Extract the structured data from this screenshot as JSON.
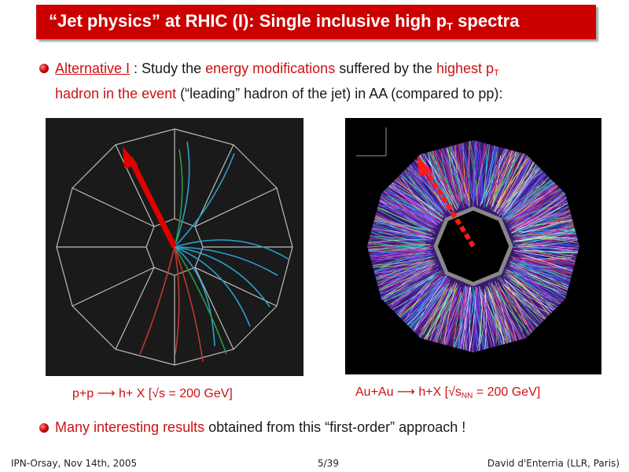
{
  "title": {
    "main": "“Jet physics” at RHIC (I): Single inclusive high p",
    "sub": "T",
    "tail": " spectra"
  },
  "bullet1": {
    "alt_label": "Alternative I",
    "t1": " : Study the ",
    "energy_mod": "energy modifications",
    "t2": " suffered by the ",
    "highest_p": "highest p",
    "highest_sub": "T",
    "line2_red": "hadron in the event",
    "line2_rest": " (“leading” hadron of the jet) in AA (compared to pp):"
  },
  "caption_pp": "p+p ⟶ h+ X [√s = 200 GeV]",
  "caption_auau": {
    "main": "Au+Au ⟶ h+X [√s",
    "sub": "NN",
    "tail": " = 200 GeV]"
  },
  "bullet2": {
    "red": "Many interesting results",
    "rest": " obtained from this “first-order” approach !"
  },
  "footer": {
    "left": "IPN-Orsay, Nov 14th, 2005",
    "center": "5/39",
    "right": "David d'Enterria (LLR, Paris)"
  },
  "colors": {
    "accent": "#cc0000",
    "text_red": "#cc1111"
  }
}
